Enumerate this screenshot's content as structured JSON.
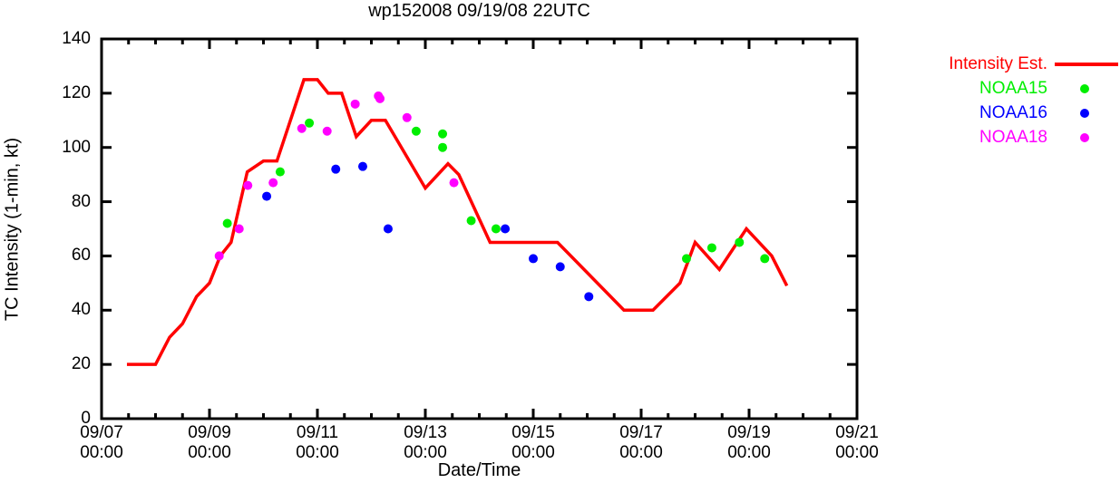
{
  "chart_data": {
    "type": "line+scatter",
    "title": "wp152008 09/19/08 22UTC",
    "xlabel": "Date/Time",
    "ylabel": "TC Intensity (1-min, kt)",
    "x_unit": "days since 09/07 00:00 UTC",
    "xlim": [
      0,
      14
    ],
    "ylim": [
      0,
      140
    ],
    "yticks": [
      0,
      20,
      40,
      60,
      80,
      100,
      120,
      140
    ],
    "xticks": [
      {
        "day": 0,
        "date": "09/07",
        "time": "00:00"
      },
      {
        "day": 2,
        "date": "09/09",
        "time": "00:00"
      },
      {
        "day": 4,
        "date": "09/11",
        "time": "00:00"
      },
      {
        "day": 6,
        "date": "09/13",
        "time": "00:00"
      },
      {
        "day": 8,
        "date": "09/15",
        "time": "00:00"
      },
      {
        "day": 10,
        "date": "09/17",
        "time": "00:00"
      },
      {
        "day": 12,
        "date": "09/19",
        "time": "00:00"
      },
      {
        "day": 14,
        "date": "09/21",
        "time": "00:00"
      }
    ],
    "minor_xtick_every_days": 0.5,
    "grid": false,
    "legend_position": "outside-right-top",
    "series": [
      {
        "name": "Intensity Est.",
        "kind": "line",
        "color": "#ff0000",
        "points": [
          [
            0.47,
            20
          ],
          [
            1.0,
            20
          ],
          [
            1.26,
            30
          ],
          [
            1.5,
            35
          ],
          [
            1.76,
            45
          ],
          [
            2.0,
            50
          ],
          [
            2.2,
            60
          ],
          [
            2.4,
            65
          ],
          [
            2.7,
            91
          ],
          [
            3.0,
            95
          ],
          [
            3.25,
            95
          ],
          [
            3.75,
            125
          ],
          [
            4.0,
            125
          ],
          [
            4.2,
            120
          ],
          [
            4.45,
            120
          ],
          [
            4.72,
            104
          ],
          [
            5.0,
            110
          ],
          [
            5.26,
            110
          ],
          [
            6.0,
            85
          ],
          [
            6.42,
            94
          ],
          [
            6.62,
            90
          ],
          [
            7.2,
            65
          ],
          [
            8.45,
            65
          ],
          [
            9.68,
            40
          ],
          [
            10.22,
            40
          ],
          [
            10.72,
            50
          ],
          [
            11.0,
            65
          ],
          [
            11.45,
            55
          ],
          [
            11.95,
            70
          ],
          [
            12.42,
            60
          ],
          [
            12.7,
            49
          ]
        ]
      },
      {
        "name": "NOAA15",
        "kind": "scatter",
        "color": "#00ee00",
        "points": [
          [
            2.33,
            72
          ],
          [
            3.31,
            91
          ],
          [
            3.85,
            109
          ],
          [
            5.83,
            106
          ],
          [
            6.32,
            105
          ],
          [
            6.32,
            100
          ],
          [
            6.85,
            73
          ],
          [
            7.31,
            70
          ],
          [
            10.84,
            59
          ],
          [
            11.31,
            63
          ],
          [
            11.82,
            65
          ],
          [
            12.29,
            59
          ]
        ]
      },
      {
        "name": "NOAA16",
        "kind": "scatter",
        "color": "#0000ff",
        "points": [
          [
            3.06,
            82
          ],
          [
            4.34,
            92
          ],
          [
            4.84,
            93
          ],
          [
            5.31,
            70
          ],
          [
            7.48,
            70
          ],
          [
            8.0,
            59
          ],
          [
            8.5,
            56
          ],
          [
            9.03,
            45
          ]
        ]
      },
      {
        "name": "NOAA18",
        "kind": "scatter",
        "color": "#ff00ff",
        "points": [
          [
            2.18,
            60
          ],
          [
            2.55,
            70
          ],
          [
            2.71,
            86
          ],
          [
            3.18,
            87
          ],
          [
            3.71,
            107
          ],
          [
            4.18,
            106
          ],
          [
            4.7,
            116
          ],
          [
            5.13,
            119
          ],
          [
            5.16,
            118
          ],
          [
            5.66,
            111
          ],
          [
            6.53,
            87
          ]
        ]
      }
    ]
  }
}
